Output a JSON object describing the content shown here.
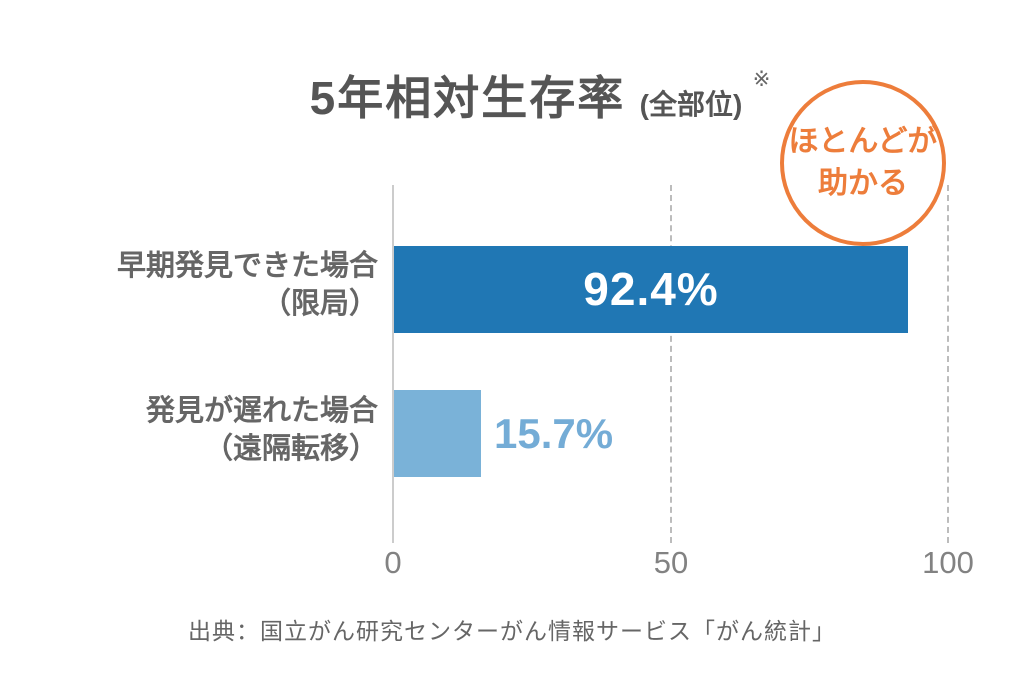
{
  "chart": {
    "title": "5年相対生存率",
    "title_unit": "(全部位)",
    "note_mark": "※",
    "badge": {
      "line1": "ほとんどが",
      "line2": "助かる",
      "color": "#ED7D3B"
    },
    "rows": [
      {
        "label_line1": "早期発見できた場合",
        "label_line2": "（限局）",
        "value_label": "92.4%",
        "bar_color": "#2077B4",
        "value_text_color": "#FFFFFF"
      },
      {
        "label_line1": "発見が遅れた場合",
        "label_line2": "（遠隔転移）",
        "value_label": "15.7%",
        "bar_color": "#7AB2D8",
        "value_text_color": "#74ACD6"
      }
    ],
    "axis": {
      "ticks": [
        "0",
        "50",
        "100"
      ]
    },
    "source": "出典：国立がん研究センターがん情報サービス「がん統計」"
  },
  "chart_data": {
    "type": "bar",
    "orientation": "horizontal",
    "title": "5年相対生存率 (全部位) ※",
    "categories": [
      "早期発見できた場合（限局）",
      "発見が遅れた場合（遠隔転移）"
    ],
    "values": [
      92.4,
      15.7
    ],
    "data_labels": [
      "92.4%",
      "15.7%"
    ],
    "xlabel": "",
    "ylabel": "",
    "xlim": [
      0,
      100
    ],
    "x_ticks": [
      0,
      50,
      100
    ],
    "bar_colors": [
      "#2077B4",
      "#7AB2D8"
    ],
    "grid": "solid axis at 0, vertical dashed gridlines at 50 and 100",
    "legend": "none",
    "annotation": "ほとんどが助かる",
    "source": "出典：国立がん研究センターがん情報サービス「がん統計」"
  }
}
